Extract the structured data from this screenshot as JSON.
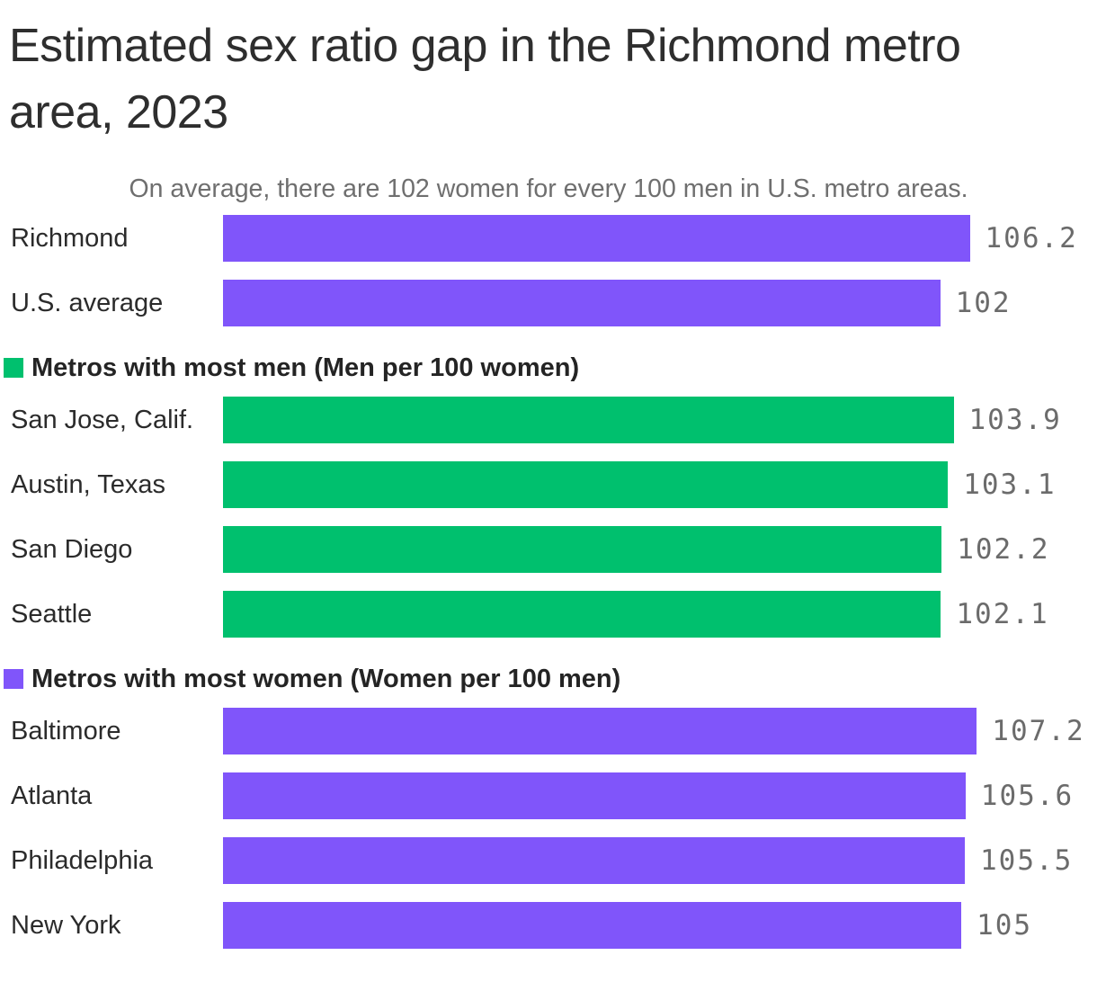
{
  "page": {
    "background": "#ffffff"
  },
  "chart_data": {
    "type": "bar",
    "orientation": "horizontal",
    "title": "Estimated sex ratio gap in the Richmond metro area, 2023",
    "subtitle": "On average, there are 102 women for every 100 men in U.S. metro areas.",
    "value_axis": {
      "min": 0,
      "max_value_shown": 107.2,
      "gridlines": false,
      "value_labels": "end-of-bar"
    },
    "colors": {
      "purple": "#8055FA",
      "green": "#00C06E",
      "title_text": "#2e2e2e",
      "subtitle_text": "#6f6f6f",
      "label_text": "#2b2b2b",
      "value_text": "#6b6b6b"
    },
    "sections": [
      {
        "legend": null,
        "color": "purple",
        "bars": [
          {
            "label": "Richmond",
            "value": 106.2,
            "display": "106.2"
          },
          {
            "label": "U.S. average",
            "value": 102,
            "display": "102"
          }
        ]
      },
      {
        "legend": {
          "label": "Metros with most men (Men per 100 women)",
          "color": "green"
        },
        "color": "green",
        "bars": [
          {
            "label": "San Jose, Calif.",
            "value": 103.9,
            "display": "103.9"
          },
          {
            "label": "Austin, Texas",
            "value": 103.1,
            "display": "103.1"
          },
          {
            "label": "San Diego",
            "value": 102.2,
            "display": "102.2"
          },
          {
            "label": "Seattle",
            "value": 102.1,
            "display": "102.1"
          }
        ]
      },
      {
        "legend": {
          "label": "Metros with most women (Women per 100 men)",
          "color": "purple"
        },
        "color": "purple",
        "bars": [
          {
            "label": "Baltimore",
            "value": 107.2,
            "display": "107.2"
          },
          {
            "label": "Atlanta",
            "value": 105.6,
            "display": "105.6"
          },
          {
            "label": "Philadelphia",
            "value": 105.5,
            "display": "105.5"
          },
          {
            "label": "New York",
            "value": 105,
            "display": "105"
          }
        ]
      }
    ]
  }
}
